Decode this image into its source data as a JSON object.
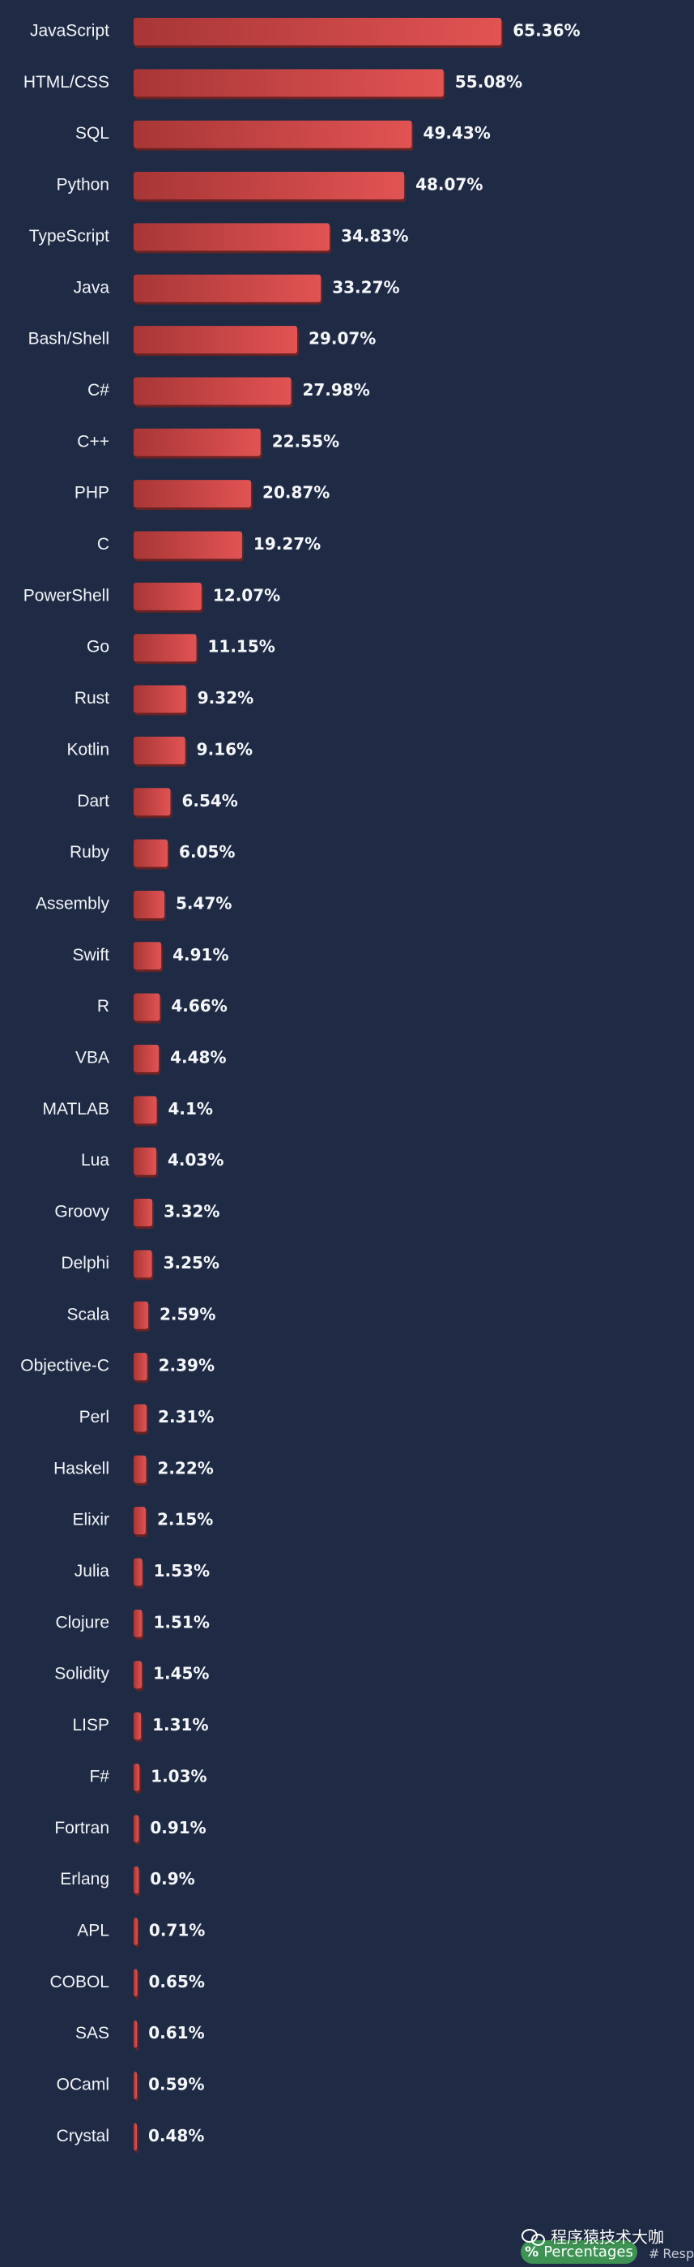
{
  "chart_data": {
    "type": "bar",
    "orientation": "horizontal",
    "categories": [
      "JavaScript",
      "HTML/CSS",
      "SQL",
      "Python",
      "TypeScript",
      "Java",
      "Bash/Shell",
      "C#",
      "C++",
      "PHP",
      "C",
      "PowerShell",
      "Go",
      "Rust",
      "Kotlin",
      "Dart",
      "Ruby",
      "Assembly",
      "Swift",
      "R",
      "VBA",
      "MATLAB",
      "Lua",
      "Groovy",
      "Delphi",
      "Scala",
      "Objective-C",
      "Perl",
      "Haskell",
      "Elixir",
      "Julia",
      "Clojure",
      "Solidity",
      "LISP",
      "F#",
      "Fortran",
      "Erlang",
      "APL",
      "COBOL",
      "SAS",
      "OCaml",
      "Crystal"
    ],
    "values": [
      65.36,
      55.08,
      49.43,
      48.07,
      34.83,
      33.27,
      29.07,
      27.98,
      22.55,
      20.87,
      19.27,
      12.07,
      11.15,
      9.32,
      9.16,
      6.54,
      6.05,
      5.47,
      4.91,
      4.66,
      4.48,
      4.1,
      4.03,
      3.32,
      3.25,
      2.59,
      2.39,
      2.31,
      2.22,
      2.15,
      1.53,
      1.51,
      1.45,
      1.31,
      1.03,
      0.91,
      0.9,
      0.71,
      0.65,
      0.61,
      0.59,
      0.48
    ],
    "value_labels": [
      "65.36%",
      "55.08%",
      "49.43%",
      "48.07%",
      "34.83%",
      "33.27%",
      "29.07%",
      "27.98%",
      "22.55%",
      "20.87%",
      "19.27%",
      "12.07%",
      "11.15%",
      "9.32%",
      "9.16%",
      "6.54%",
      "6.05%",
      "5.47%",
      "4.91%",
      "4.66%",
      "4.48%",
      "4.1%",
      "4.03%",
      "3.32%",
      "3.25%",
      "2.59%",
      "2.39%",
      "2.31%",
      "2.22%",
      "2.15%",
      "1.53%",
      "1.51%",
      "1.45%",
      "1.31%",
      "1.03%",
      "0.91%",
      "0.9%",
      "0.71%",
      "0.65%",
      "0.61%",
      "0.59%",
      "0.48%"
    ],
    "title": "",
    "xlabel": "",
    "ylabel": "",
    "xlim": [
      0,
      100
    ],
    "grid": false,
    "legend": "none",
    "colors": {
      "background": "#1f2b45",
      "bar_start": "#a83636",
      "bar_end": "#e25353",
      "bar_shadow": "#6d2222",
      "label": "#f1f3f7",
      "value": "#f6f7fb"
    }
  },
  "footer": {
    "watermark_text": "程序猿技术大咖",
    "watermark_icon": "wechat-icon",
    "percentages_button_icon": "%",
    "percentages_button_label": "Percentages",
    "response_button_icon": "#",
    "response_button_label": "Resp",
    "colors": {
      "pill_bg": "#3e9354",
      "pill_text": "#ffffff",
      "secondary_text": "#c7ccd7"
    }
  }
}
